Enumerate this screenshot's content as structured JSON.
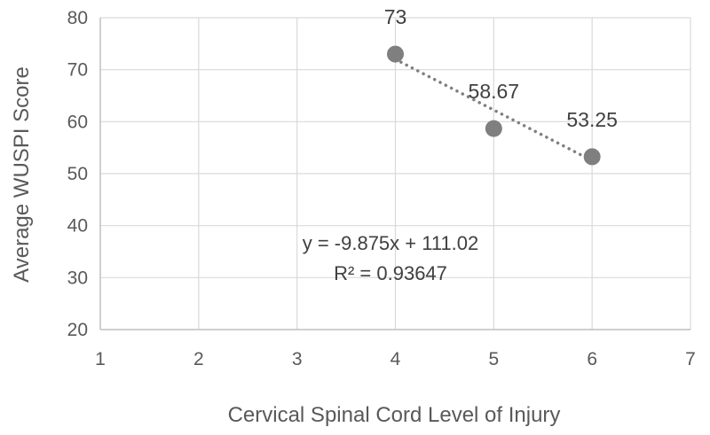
{
  "chart_data": {
    "type": "scatter",
    "title": "",
    "xlabel": "Cervical Spinal Cord Level of Injury",
    "ylabel": "Average WUSPI Score",
    "xlim": [
      1,
      7
    ],
    "ylim": [
      20,
      80
    ],
    "xticks": [
      1,
      2,
      3,
      4,
      5,
      6,
      7
    ],
    "yticks": [
      20,
      30,
      40,
      50,
      60,
      70,
      80
    ],
    "grid": true,
    "series": [
      {
        "x": [
          4,
          5,
          6
        ],
        "y": [
          73,
          58.67,
          53.25
        ],
        "labels": [
          "73",
          "58.67",
          "53.25"
        ],
        "color": "#7f7f7f"
      }
    ],
    "trendline": {
      "type": "dotted",
      "color": "#7f7f7f",
      "x_range": [
        4,
        6
      ],
      "y_range": [
        72,
        52.5
      ],
      "equation": "y = -9.875x + 111.02",
      "r_squared": "R² = 0.93647"
    }
  }
}
